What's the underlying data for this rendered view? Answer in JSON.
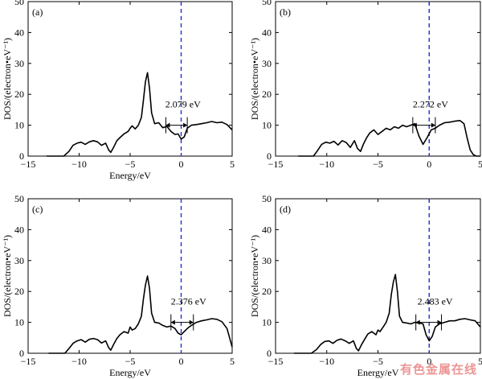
{
  "chart_data": [
    {
      "type": "line",
      "panel": "(a)",
      "xlabel": "Energy/eV",
      "ylabel": "DOS/(electron•eV⁻¹)",
      "xlim": [
        -15,
        5
      ],
      "ylim": [
        0,
        50
      ],
      "xticks": [
        -15,
        -10,
        -5,
        0,
        5
      ],
      "yticks": [
        0,
        10,
        20,
        30,
        40,
        50
      ],
      "fermi_level": 0,
      "gap": {
        "label": "2.079 eV",
        "from": -1.5,
        "to": 0.6,
        "y": 10
      },
      "x": [
        -13.2,
        -11.5,
        -11.0,
        -10.6,
        -10.2,
        -9.8,
        -9.4,
        -9.0,
        -8.6,
        -8.2,
        -7.8,
        -7.4,
        -7.1,
        -6.9,
        -6.6,
        -6.3,
        -6.0,
        -5.6,
        -5.2,
        -5.0,
        -4.8,
        -4.5,
        -4.2,
        -3.9,
        -3.7,
        -3.5,
        -3.3,
        -3.1,
        -2.9,
        -2.6,
        -2.2,
        -1.8,
        -1.4,
        -1.0,
        -0.6,
        -0.3,
        0.0,
        0.3,
        0.6,
        1.0,
        1.5,
        2.0,
        2.5,
        3.0,
        3.5,
        4.0,
        4.5,
        5.0
      ],
      "values": [
        0,
        0,
        1.5,
        3.5,
        4.2,
        4.5,
        3.8,
        4.6,
        5.0,
        4.6,
        3.5,
        4.2,
        2.0,
        1.2,
        3.0,
        5.0,
        6.0,
        7.2,
        8.0,
        9.0,
        9.8,
        8.8,
        10.0,
        12.5,
        18.0,
        24.0,
        27.0,
        22.0,
        14.0,
        10.5,
        10.8,
        9.2,
        9.6,
        8.0,
        7.0,
        7.2,
        5.5,
        6.2,
        9.0,
        10.0,
        10.2,
        10.5,
        10.8,
        11.2,
        10.8,
        11.0,
        10.2,
        8.5
      ]
    },
    {
      "type": "line",
      "panel": "(b)",
      "xlabel": "",
      "ylabel": "DOS/(electron•eV⁻¹)",
      "xlim": [
        -15,
        5
      ],
      "ylim": [
        0,
        50
      ],
      "xticks": [
        -15,
        -10,
        -5,
        0,
        5
      ],
      "yticks": [
        0,
        10,
        20,
        30,
        40,
        50
      ],
      "fermi_level": 0,
      "gap": {
        "label": "2.272 eV",
        "from": -1.6,
        "to": 0.6,
        "y": 10
      },
      "x": [
        -12.8,
        -11.3,
        -10.9,
        -10.5,
        -10.1,
        -9.7,
        -9.3,
        -8.9,
        -8.5,
        -8.1,
        -7.7,
        -7.3,
        -7.0,
        -6.7,
        -6.4,
        -6.1,
        -5.8,
        -5.4,
        -5.0,
        -4.6,
        -4.2,
        -3.8,
        -3.4,
        -3.0,
        -2.6,
        -2.2,
        -1.8,
        -1.4,
        -1.0,
        -0.6,
        -0.2,
        0.2,
        0.6,
        1.0,
        1.5,
        2.0,
        2.5,
        3.0,
        3.4,
        3.7,
        4.0,
        4.3,
        4.6,
        5.0
      ],
      "values": [
        0,
        0,
        1.8,
        3.8,
        4.5,
        4.2,
        4.8,
        3.6,
        5.0,
        4.4,
        2.8,
        5.0,
        2.5,
        1.5,
        4.0,
        6.0,
        7.5,
        8.5,
        7.0,
        8.0,
        9.0,
        8.5,
        9.5,
        9.0,
        10.0,
        9.5,
        10.0,
        10.5,
        6.5,
        3.8,
        6.0,
        8.5,
        9.0,
        10.0,
        10.8,
        11.0,
        11.3,
        11.5,
        10.5,
        6.0,
        2.0,
        0.5,
        0,
        0
      ]
    },
    {
      "type": "line",
      "panel": "(c)",
      "xlabel": "Energy/eV",
      "ylabel": "DOS/(electron•eV⁻¹)",
      "xlim": [
        -15,
        5
      ],
      "ylim": [
        0,
        50
      ],
      "xticks": [
        -15,
        -10,
        -5,
        0,
        5
      ],
      "yticks": [
        0,
        10,
        20,
        30,
        40,
        50
      ],
      "fermi_level": 0,
      "gap": {
        "label": "2.376 eV",
        "from": -1.0,
        "to": 1.2,
        "y": 10
      },
      "x": [
        -13.0,
        -11.4,
        -11.0,
        -10.6,
        -10.2,
        -9.8,
        -9.4,
        -9.0,
        -8.6,
        -8.2,
        -7.8,
        -7.4,
        -7.1,
        -6.9,
        -6.6,
        -6.3,
        -6.0,
        -5.6,
        -5.2,
        -5.0,
        -4.8,
        -4.5,
        -4.2,
        -3.9,
        -3.7,
        -3.5,
        -3.3,
        -3.1,
        -2.9,
        -2.6,
        -2.2,
        -1.8,
        -1.4,
        -1.0,
        -0.6,
        -0.3,
        0.0,
        0.3,
        0.6,
        1.0,
        1.5,
        2.0,
        2.5,
        3.0,
        3.5,
        4.0,
        4.5,
        5.0
      ],
      "values": [
        0,
        0,
        1.5,
        3.2,
        4.0,
        4.4,
        3.6,
        4.5,
        4.8,
        4.4,
        3.3,
        4.0,
        1.8,
        1.0,
        3.0,
        4.8,
        6.0,
        7.0,
        6.5,
        8.5,
        7.5,
        8.0,
        9.5,
        12.0,
        17.5,
        22.0,
        25.0,
        21.0,
        13.0,
        10.0,
        9.8,
        9.0,
        8.5,
        8.8,
        8.0,
        6.5,
        6.0,
        7.0,
        8.0,
        9.0,
        10.0,
        10.5,
        10.8,
        11.2,
        11.0,
        10.2,
        8.0,
        2.0
      ]
    },
    {
      "type": "line",
      "panel": "(d)",
      "xlabel": "Energy/eV",
      "ylabel": "DOS/(electron•eV⁻¹)",
      "xlim": [
        -15,
        5
      ],
      "ylim": [
        0,
        50
      ],
      "xticks": [
        -15,
        -10,
        -5,
        0,
        5
      ],
      "yticks": [
        0,
        10,
        20,
        30,
        40,
        50
      ],
      "fermi_level": 0,
      "gap": {
        "label": "2.483 eV",
        "from": -1.3,
        "to": 1.2,
        "y": 10
      },
      "x": [
        -13.2,
        -11.5,
        -11.0,
        -10.6,
        -10.2,
        -9.8,
        -9.4,
        -9.0,
        -8.6,
        -8.2,
        -7.8,
        -7.4,
        -7.1,
        -6.9,
        -6.6,
        -6.3,
        -6.0,
        -5.6,
        -5.2,
        -5.0,
        -4.8,
        -4.5,
        -4.2,
        -3.9,
        -3.7,
        -3.5,
        -3.3,
        -3.1,
        -2.9,
        -2.6,
        -2.2,
        -1.8,
        -1.4,
        -1.0,
        -0.6,
        -0.3,
        0.0,
        0.3,
        0.6,
        1.0,
        1.5,
        2.0,
        2.5,
        3.0,
        3.5,
        4.0,
        4.5,
        5.0
      ],
      "values": [
        0,
        0,
        1.2,
        2.8,
        3.8,
        4.0,
        3.2,
        4.2,
        4.6,
        4.0,
        3.2,
        4.0,
        1.5,
        0.8,
        2.8,
        4.5,
        6.2,
        7.0,
        6.0,
        7.5,
        7.0,
        8.5,
        10.0,
        13.0,
        19.0,
        23.0,
        25.5,
        20.0,
        12.0,
        10.0,
        9.8,
        9.5,
        10.0,
        9.8,
        9.5,
        6.0,
        4.0,
        5.5,
        8.5,
        9.5,
        10.0,
        10.5,
        10.5,
        11.0,
        11.2,
        10.8,
        10.5,
        8.5
      ]
    }
  ],
  "watermark": "有色金属在线"
}
